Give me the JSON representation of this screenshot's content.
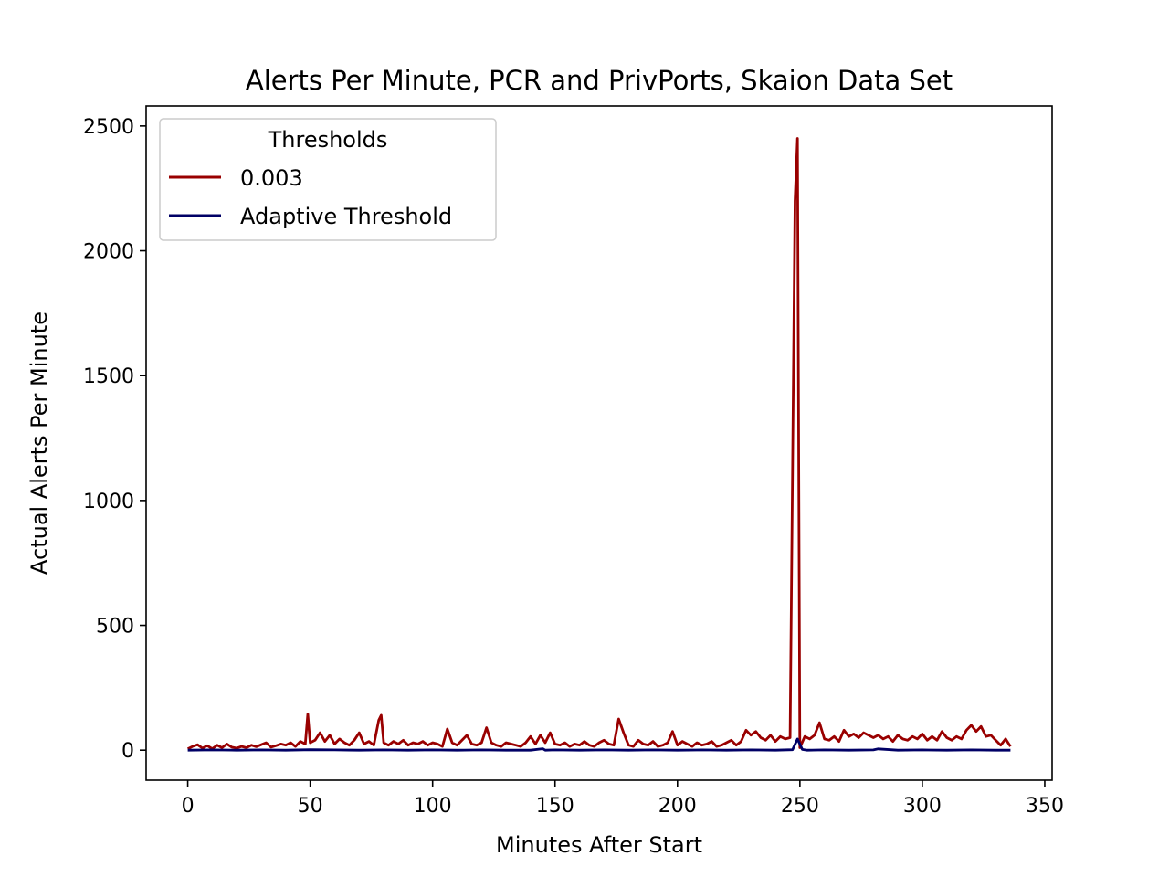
{
  "chart_data": {
    "type": "line",
    "title": "Alerts Per Minute, PCR and PrivPorts, Skaion Data Set",
    "xlabel": "Minutes After Start",
    "ylabel": "Actual Alerts Per Minute",
    "xlim": [
      -17,
      353
    ],
    "ylim": [
      -120,
      2580
    ],
    "xticks": [
      0,
      50,
      100,
      150,
      200,
      250,
      300,
      350
    ],
    "yticks": [
      0,
      500,
      1000,
      1500,
      2000,
      2500
    ],
    "grid": false,
    "legend": {
      "title": "Thresholds",
      "position": "upper-left"
    },
    "series": [
      {
        "name": "0.003",
        "color": "#990000",
        "x": [
          0,
          2,
          4,
          6,
          8,
          10,
          12,
          14,
          16,
          18,
          20,
          22,
          24,
          26,
          28,
          30,
          32,
          34,
          36,
          38,
          40,
          42,
          44,
          46,
          48,
          49,
          50,
          52,
          54,
          56,
          58,
          60,
          62,
          64,
          66,
          68,
          70,
          72,
          74,
          76,
          78,
          79,
          80,
          82,
          84,
          86,
          88,
          90,
          92,
          94,
          96,
          98,
          100,
          102,
          104,
          106,
          108,
          110,
          112,
          114,
          116,
          118,
          120,
          122,
          124,
          126,
          128,
          130,
          132,
          134,
          136,
          138,
          140,
          142,
          144,
          146,
          148,
          150,
          152,
          154,
          156,
          158,
          160,
          162,
          164,
          166,
          168,
          170,
          172,
          174,
          176,
          178,
          180,
          182,
          184,
          186,
          188,
          190,
          192,
          194,
          196,
          198,
          200,
          202,
          204,
          206,
          208,
          210,
          212,
          214,
          216,
          218,
          220,
          222,
          224,
          226,
          228,
          230,
          232,
          234,
          236,
          238,
          240,
          242,
          244,
          246,
          248,
          249,
          250,
          252,
          254,
          256,
          258,
          260,
          262,
          264,
          266,
          268,
          270,
          272,
          274,
          276,
          278,
          280,
          282,
          284,
          286,
          288,
          290,
          292,
          294,
          296,
          298,
          300,
          302,
          304,
          306,
          308,
          310,
          312,
          314,
          316,
          318,
          320,
          322,
          324,
          326,
          328,
          330,
          332,
          334,
          336
        ],
        "values": [
          5,
          15,
          22,
          8,
          18,
          6,
          20,
          10,
          25,
          12,
          8,
          15,
          10,
          20,
          14,
          22,
          30,
          12,
          18,
          25,
          20,
          30,
          15,
          35,
          25,
          145,
          30,
          40,
          70,
          35,
          60,
          25,
          45,
          30,
          20,
          40,
          70,
          25,
          35,
          20,
          120,
          140,
          30,
          20,
          35,
          25,
          40,
          20,
          30,
          25,
          35,
          20,
          30,
          25,
          15,
          85,
          30,
          20,
          40,
          60,
          25,
          20,
          30,
          90,
          30,
          20,
          15,
          30,
          25,
          20,
          15,
          30,
          55,
          25,
          60,
          30,
          70,
          25,
          20,
          30,
          15,
          25,
          20,
          35,
          20,
          15,
          30,
          40,
          25,
          20,
          125,
          70,
          20,
          15,
          40,
          25,
          20,
          35,
          15,
          20,
          30,
          75,
          20,
          35,
          25,
          15,
          30,
          20,
          25,
          35,
          15,
          20,
          30,
          40,
          20,
          35,
          80,
          60,
          75,
          50,
          40,
          60,
          35,
          55,
          45,
          50,
          2200,
          2450,
          10,
          55,
          45,
          60,
          110,
          45,
          40,
          55,
          35,
          80,
          55,
          65,
          50,
          70,
          60,
          50,
          60,
          45,
          55,
          35,
          60,
          45,
          40,
          55,
          45,
          65,
          40,
          55,
          40,
          75,
          50,
          40,
          55,
          45,
          80,
          100,
          75,
          95,
          55,
          60,
          40,
          20,
          45,
          15
        ]
      },
      {
        "name": "Adaptive Threshold",
        "color": "#000066",
        "x": [
          0,
          10,
          20,
          30,
          40,
          50,
          60,
          70,
          80,
          90,
          100,
          110,
          120,
          130,
          140,
          145,
          146,
          150,
          160,
          170,
          180,
          190,
          200,
          210,
          220,
          230,
          240,
          247,
          249,
          251,
          253,
          260,
          270,
          280,
          282,
          290,
          300,
          310,
          320,
          330,
          336
        ],
        "values": [
          0,
          1,
          0,
          1,
          0,
          2,
          1,
          0,
          1,
          0,
          1,
          0,
          1,
          0,
          0,
          6,
          0,
          1,
          0,
          1,
          0,
          1,
          0,
          1,
          0,
          1,
          0,
          2,
          45,
          3,
          0,
          1,
          0,
          1,
          5,
          0,
          1,
          0,
          1,
          0,
          0
        ]
      }
    ]
  }
}
